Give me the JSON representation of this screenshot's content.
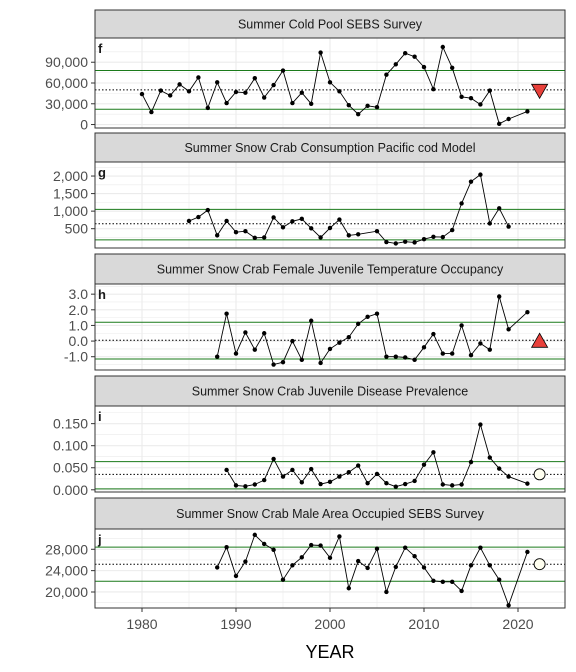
{
  "chart_data": {
    "type": "line",
    "xlabel": "YEAR",
    "xlim": [
      1975,
      2025
    ],
    "xticks": [
      1980,
      1990,
      2000,
      2010,
      2020
    ],
    "colors": {
      "line": "#000000",
      "band": "#1a7a1a",
      "mean": "#000000",
      "strip": "#d9d9d9",
      "grid": "#ebebeb",
      "triangle_fill": "#e8403a"
    },
    "panels": [
      {
        "title": "Summer Cold Pool SEBS Survey",
        "letter": "f",
        "ylim": [
          -5000,
          125000
        ],
        "ytick_labels": [
          "0",
          "30,000",
          "60,000",
          "90,000"
        ],
        "yticks": [
          0,
          30000,
          60000,
          90000
        ],
        "mean": 50000,
        "band": [
          22000,
          78000
        ],
        "marker": {
          "shape": "triangle-down",
          "x": 2022.3,
          "y": 48000
        },
        "x": [
          1980,
          1981,
          1982,
          1983,
          1984,
          1985,
          1986,
          1987,
          1988,
          1989,
          1990,
          1991,
          1992,
          1993,
          1994,
          1995,
          1996,
          1997,
          1998,
          1999,
          2000,
          2001,
          2002,
          2003,
          2004,
          2005,
          2006,
          2007,
          2008,
          2009,
          2010,
          2011,
          2012,
          2013,
          2014,
          2015,
          2016,
          2017,
          2018,
          2019,
          2021
        ],
        "y": [
          44000,
          18000,
          49000,
          42000,
          58000,
          48000,
          68000,
          24000,
          61000,
          31000,
          47000,
          46000,
          67000,
          39000,
          57000,
          78000,
          31000,
          46000,
          30000,
          104000,
          61000,
          48000,
          28000,
          15000,
          27000,
          25000,
          72000,
          87000,
          103000,
          98000,
          83000,
          51000,
          112000,
          82000,
          40000,
          38000,
          29000,
          49000,
          1000,
          8000,
          19000
        ]
      },
      {
        "title": "Summer Snow Crab Consumption Pacific cod Model",
        "letter": "g",
        "ylim": [
          -50,
          2400
        ],
        "ytick_labels": [
          "500",
          "1,000",
          "1,500",
          "2,000"
        ],
        "yticks": [
          500,
          1000,
          1500,
          2000
        ],
        "mean": 640,
        "band": [
          180,
          1050
        ],
        "marker": null,
        "x": [
          1985,
          1986,
          1987,
          1988,
          1989,
          1990,
          1991,
          1992,
          1993,
          1994,
          1995,
          1996,
          1997,
          1998,
          1999,
          2000,
          2001,
          2002,
          2003,
          2005,
          2006,
          2007,
          2008,
          2009,
          2010,
          2011,
          2012,
          2013,
          2014,
          2015,
          2016,
          2017,
          2018,
          2019
        ],
        "y": [
          720,
          830,
          1030,
          310,
          720,
          400,
          430,
          240,
          250,
          820,
          540,
          710,
          780,
          510,
          250,
          520,
          760,
          310,
          340,
          430,
          120,
          80,
          130,
          110,
          200,
          270,
          260,
          460,
          1220,
          1840,
          2040,
          650,
          1080,
          560
        ]
      },
      {
        "title": "Summer Snow Crab Female Juvenile Temperature Occupancy",
        "letter": "h",
        "ylim": [
          -1.85,
          3.65
        ],
        "ytick_labels": [
          "-1.0",
          "0.0",
          "1.0",
          "2.0",
          "3.0"
        ],
        "yticks": [
          -1,
          0,
          1,
          2,
          3
        ],
        "mean": 0.05,
        "band": [
          -1.15,
          1.2
        ],
        "marker": {
          "shape": "triangle-up",
          "x": 2022.3,
          "y": 0.05
        },
        "x": [
          1988,
          1989,
          1990,
          1991,
          1992,
          1993,
          1994,
          1995,
          1996,
          1997,
          1998,
          1999,
          2000,
          2001,
          2002,
          2003,
          2004,
          2005,
          2006,
          2007,
          2008,
          2009,
          2010,
          2011,
          2012,
          2013,
          2014,
          2015,
          2016,
          2017,
          2018,
          2019,
          2021
        ],
        "y": [
          -1.0,
          1.75,
          -0.8,
          0.55,
          -0.55,
          0.5,
          -1.5,
          -1.35,
          0.0,
          -1.2,
          1.3,
          -1.4,
          -0.5,
          -0.1,
          0.25,
          1.1,
          1.55,
          1.75,
          -1.0,
          -1.0,
          -1.05,
          -1.2,
          -0.4,
          0.45,
          -0.8,
          -0.8,
          1.0,
          -0.9,
          -0.15,
          -0.55,
          2.85,
          0.75,
          1.85
        ]
      },
      {
        "title": "Summer Snow Crab Juvenile Disease Prevalence",
        "letter": "i",
        "ylim": [
          -0.005,
          0.19
        ],
        "ytick_labels": [
          "0.000",
          "0.050",
          "0.100",
          "0.150"
        ],
        "yticks": [
          0,
          0.05,
          0.1,
          0.15
        ],
        "mean": 0.035,
        "band": [
          0.002,
          0.064
        ],
        "marker": {
          "shape": "circle",
          "x": 2022.3,
          "y": 0.035
        },
        "x": [
          1989,
          1990,
          1991,
          1992,
          1993,
          1994,
          1995,
          1996,
          1997,
          1998,
          1999,
          2000,
          2001,
          2002,
          2003,
          2004,
          2005,
          2006,
          2007,
          2008,
          2009,
          2010,
          2011,
          2012,
          2013,
          2014,
          2015,
          2016,
          2017,
          2018,
          2019,
          2021
        ],
        "y": [
          0.045,
          0.01,
          0.008,
          0.012,
          0.022,
          0.07,
          0.03,
          0.045,
          0.017,
          0.047,
          0.013,
          0.018,
          0.03,
          0.04,
          0.055,
          0.015,
          0.036,
          0.015,
          0.007,
          0.013,
          0.02,
          0.057,
          0.085,
          0.012,
          0.01,
          0.012,
          0.063,
          0.148,
          0.073,
          0.048,
          0.03,
          0.014
        ]
      },
      {
        "title": "Summer Snow Crab Male Area Occupied SEBS Survey",
        "letter": "j",
        "ylim": [
          17000,
          31800
        ],
        "ytick_labels": [
          "20,000",
          "24,000",
          "28,000"
        ],
        "yticks": [
          20000,
          24000,
          28000
        ],
        "mean": 25200,
        "band": [
          22000,
          28400
        ],
        "marker": {
          "shape": "circle",
          "x": 2022.3,
          "y": 25200
        },
        "x": [
          1988,
          1989,
          1990,
          1991,
          1992,
          1993,
          1994,
          1995,
          1996,
          1997,
          1998,
          1999,
          2000,
          2001,
          2002,
          2003,
          2004,
          2005,
          2006,
          2007,
          2008,
          2009,
          2010,
          2011,
          2012,
          2013,
          2014,
          2015,
          2016,
          2017,
          2018,
          2019,
          2021
        ],
        "y": [
          24600,
          28400,
          23000,
          25700,
          30700,
          29000,
          27900,
          22300,
          25000,
          26500,
          28800,
          28700,
          26400,
          30400,
          20700,
          25800,
          24500,
          28100,
          20000,
          24700,
          28300,
          26700,
          24600,
          22100,
          21900,
          21900,
          20200,
          25000,
          28300,
          25000,
          22300,
          17500,
          27500
        ]
      }
    ]
  }
}
